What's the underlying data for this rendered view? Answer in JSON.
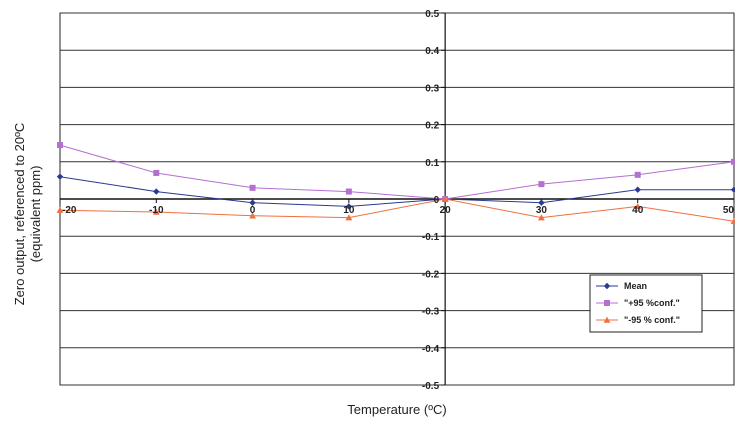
{
  "chart_data": {
    "type": "line",
    "title": "",
    "xlabel": "Temperature (ºC)",
    "ylabel": "Zero output, referenced to 20ºC",
    "ylabel_line2": "(equivalent ppm)",
    "x": [
      -20,
      -10,
      0,
      10,
      20,
      30,
      40,
      50
    ],
    "xlim": [
      -20,
      50
    ],
    "ylim": [
      -0.5,
      0.5
    ],
    "x_ticks": [
      -20,
      -10,
      0,
      10,
      20,
      30,
      40,
      50
    ],
    "y_ticks": [
      0.5,
      0.4,
      0.3,
      0.2,
      0.1,
      0,
      -0.1,
      -0.2,
      -0.3,
      -0.4,
      -0.5
    ],
    "x_tick_labels": [
      "-20",
      "-10",
      "0",
      "10",
      "20",
      "30",
      "40",
      "50"
    ],
    "y_tick_labels": [
      "0.5",
      "0.4",
      "0.3",
      "0.2",
      "0.1",
      "0",
      "-0.1",
      "-0.2",
      "-0.3",
      "-0.4",
      "-0.5"
    ],
    "y_axis_at_x": 20,
    "x_axis_at_y": 0,
    "grid": "horizontal",
    "legend_position": "bottom-right",
    "series": [
      {
        "name": "Mean",
        "color": "#2b3a8f",
        "marker": "diamond",
        "values": [
          0.06,
          0.02,
          -0.01,
          -0.02,
          0,
          -0.01,
          0.025,
          0.025
        ]
      },
      {
        "name": "\"+95 %conf.\"",
        "color": "#b46fd0",
        "marker": "square",
        "values": [
          0.145,
          0.07,
          0.03,
          0.02,
          0,
          0.04,
          0.065,
          0.1
        ]
      },
      {
        "name": "\"-95 % conf.\"",
        "color": "#f07040",
        "marker": "triangle",
        "values": [
          -0.03,
          -0.035,
          -0.045,
          -0.05,
          0,
          -0.05,
          -0.02,
          -0.06
        ]
      }
    ]
  }
}
